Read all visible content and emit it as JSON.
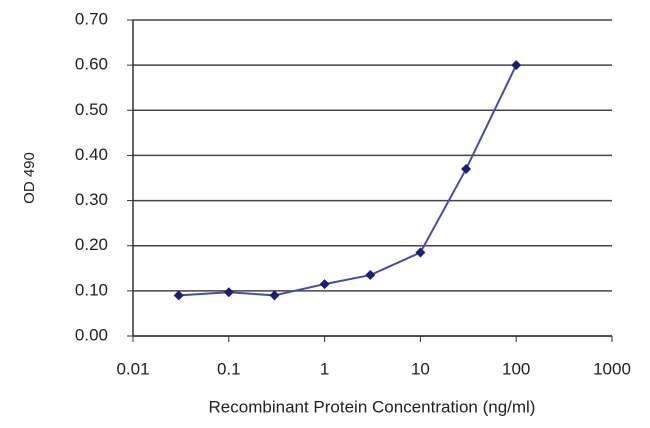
{
  "chart_data": {
    "type": "line",
    "x_label": "Recombinant Protein Concentration (ng/ml)",
    "y_label": "OD 490",
    "xscale": "log",
    "xlim": [
      0.01,
      1000
    ],
    "xticks": [
      0.01,
      0.1,
      1,
      10,
      100,
      1000
    ],
    "ylim": [
      0,
      0.7
    ],
    "yticks": [
      {
        "value": 0,
        "label": "0.00"
      },
      {
        "value": 0.1,
        "label": "0.10"
      },
      {
        "value": 0.2,
        "label": "0.20"
      },
      {
        "value": 0.3,
        "label": "0.30"
      },
      {
        "value": 0.4,
        "label": "0.40"
      },
      {
        "value": 0.5,
        "label": "0.50"
      },
      {
        "value": 0.6,
        "label": "0.60"
      },
      {
        "value": 0.7,
        "label": "0.70"
      }
    ],
    "grid": true,
    "series": [
      {
        "color": "#4a4aa8",
        "marker_color": "#1e1e78",
        "x": [
          0.03,
          0.1,
          0.3,
          1,
          3,
          10,
          30,
          100
        ],
        "values": [
          0.09,
          0.097,
          0.09,
          0.115,
          0.135,
          0.185,
          0.37,
          0.6
        ]
      }
    ]
  }
}
